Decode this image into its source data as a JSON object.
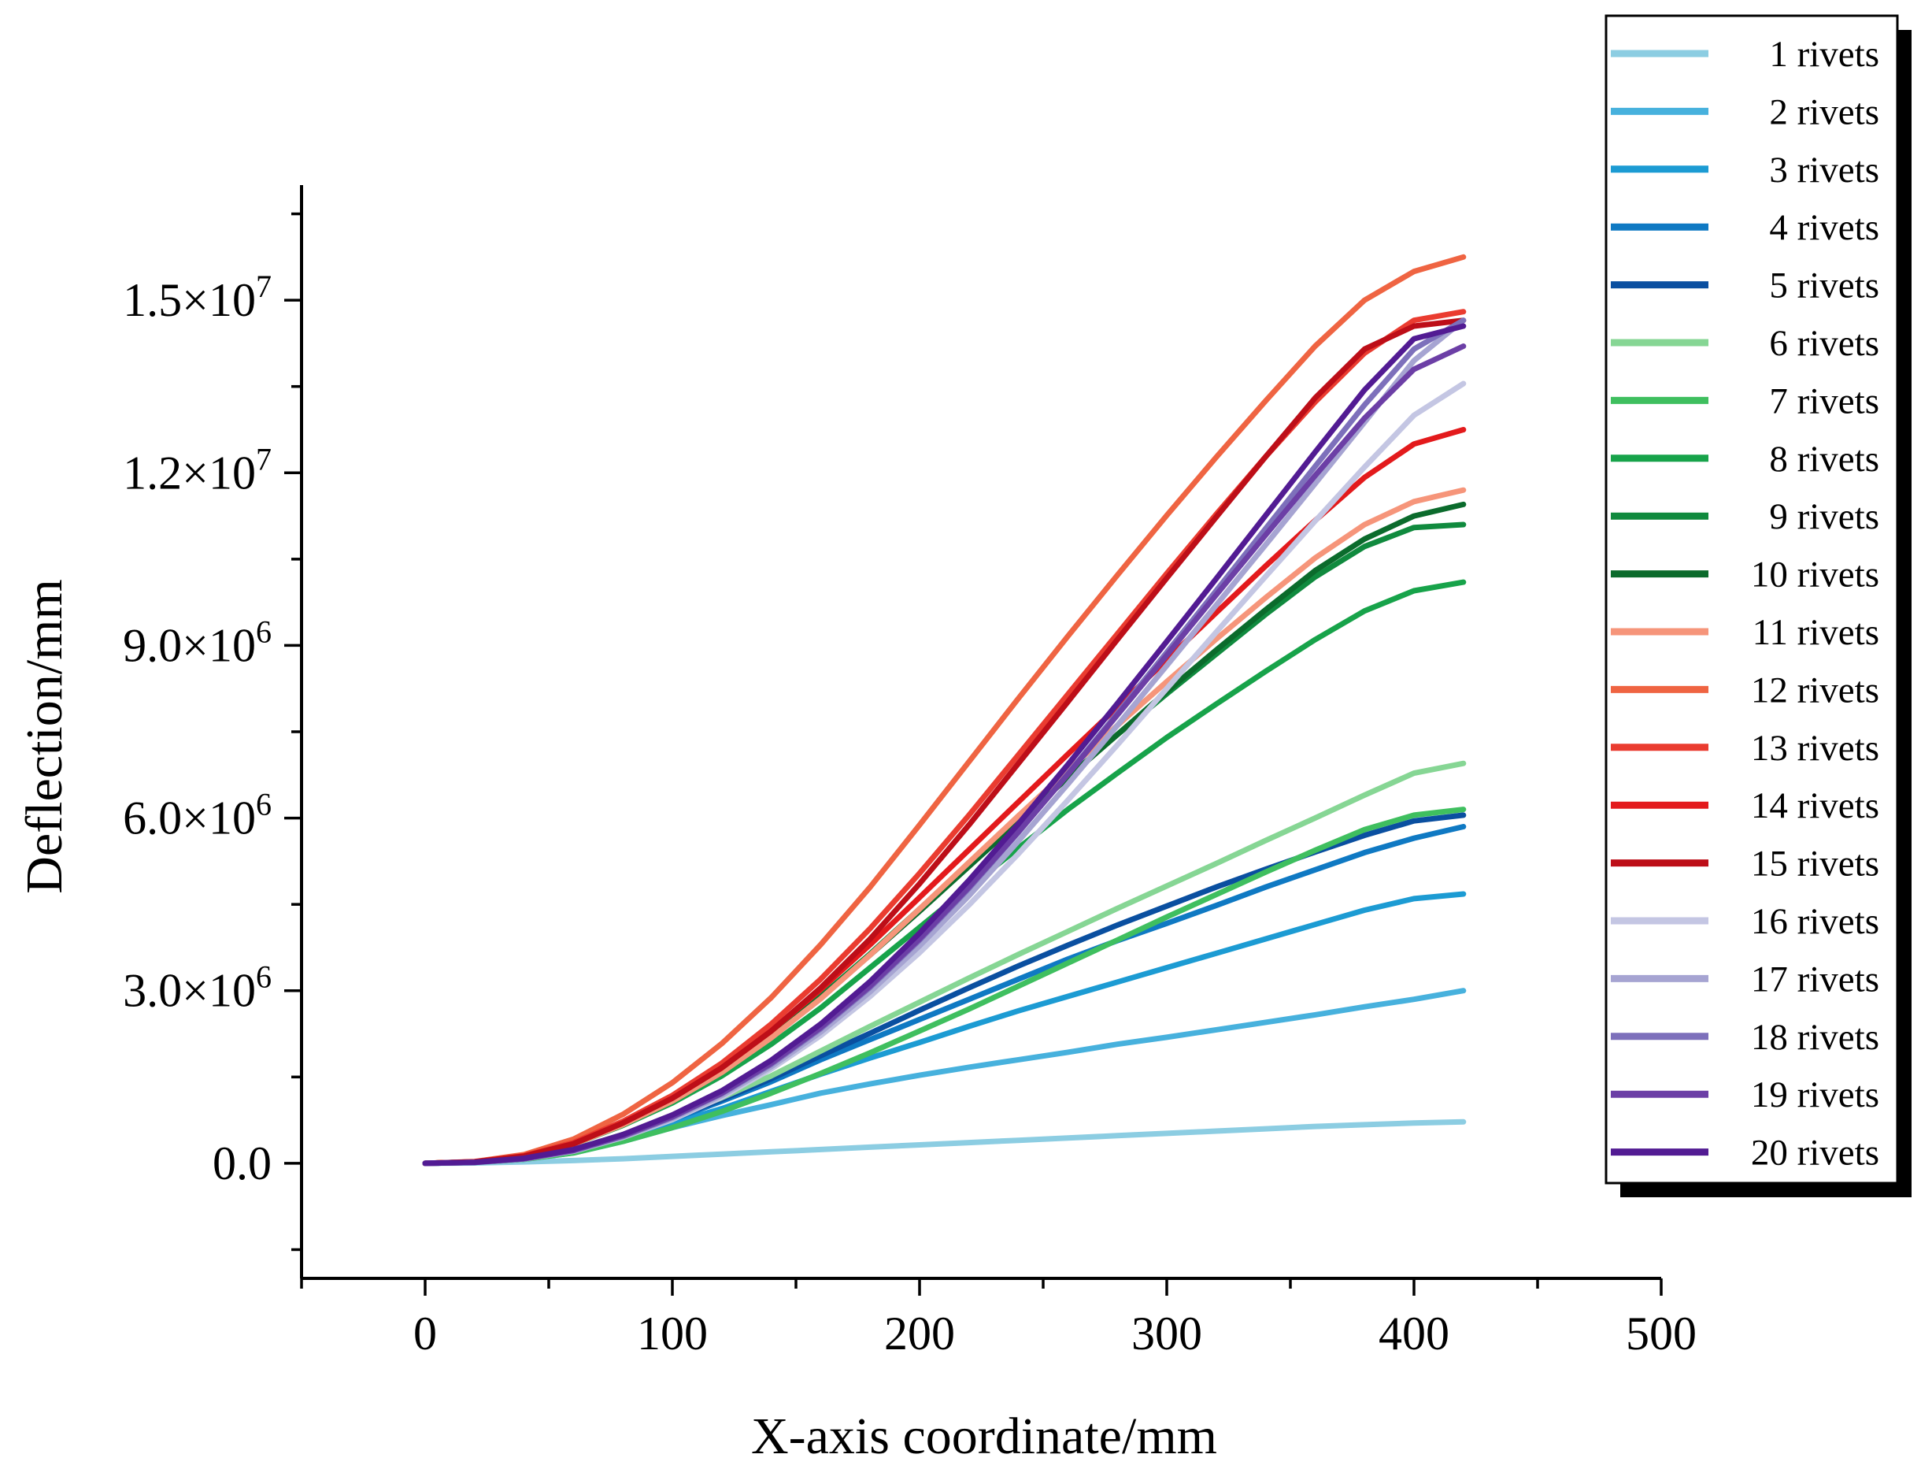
{
  "chart_data": {
    "type": "line",
    "xlabel": "X-axis coordinate/mm",
    "ylabel": "Deflection/mm",
    "xlim": [
      -50,
      500
    ],
    "ylim": [
      -2000000,
      17000000
    ],
    "x_ticks": [
      0,
      100,
      200,
      300,
      400,
      500
    ],
    "x_tick_labels": [
      "0",
      "100",
      "200",
      "300",
      "400",
      "500"
    ],
    "y_ticks": [
      0,
      3000000,
      6000000,
      9000000,
      12000000,
      15000000
    ],
    "y_tick_labels": [
      {
        "mantissa": "0.0",
        "exp": ""
      },
      {
        "mantissa": "3.0×10",
        "exp": "6"
      },
      {
        "mantissa": "6.0×10",
        "exp": "6"
      },
      {
        "mantissa": "9.0×10",
        "exp": "6"
      },
      {
        "mantissa": "1.2×10",
        "exp": "7"
      },
      {
        "mantissa": "1.5×10",
        "exp": "7"
      }
    ],
    "legend_position": "top-right outside",
    "x": [
      0,
      20,
      40,
      60,
      80,
      100,
      120,
      140,
      160,
      180,
      200,
      220,
      240,
      260,
      280,
      300,
      320,
      340,
      360,
      380,
      400,
      420
    ],
    "series": [
      {
        "name": "1 rivets",
        "color": "#8ccde2",
        "values": [
          0,
          6000,
          25000,
          48000,
          80000,
          120000,
          160000,
          200000,
          240000,
          280000,
          320000,
          360000,
          400000,
          440000,
          480000,
          520000,
          560000,
          600000,
          640000,
          670000,
          700000,
          720000
        ]
      },
      {
        "name": "2 rivets",
        "color": "#47b1dd",
        "values": [
          0,
          15000,
          70000,
          180000,
          380000,
          620000,
          830000,
          1020000,
          1220000,
          1380000,
          1530000,
          1670000,
          1800000,
          1930000,
          2070000,
          2190000,
          2320000,
          2450000,
          2580000,
          2720000,
          2850000,
          3000000
        ]
      },
      {
        "name": "3 rivets",
        "color": "#1c9bd3",
        "values": [
          0,
          18000,
          80000,
          220000,
          450000,
          700000,
          950000,
          1250000,
          1550000,
          1830000,
          2100000,
          2380000,
          2650000,
          2900000,
          3150000,
          3400000,
          3650000,
          3900000,
          4150000,
          4400000,
          4600000,
          4680000
        ]
      },
      {
        "name": "4 rivets",
        "color": "#0f79c3",
        "values": [
          0,
          18000,
          85000,
          230000,
          480000,
          760000,
          1080000,
          1420000,
          1800000,
          2150000,
          2500000,
          2850000,
          3200000,
          3550000,
          3870000,
          4170000,
          4480000,
          4800000,
          5100000,
          5400000,
          5650000,
          5850000
        ]
      },
      {
        "name": "5 rivets",
        "color": "#0a4fa0",
        "values": [
          0,
          18000,
          85000,
          235000,
          490000,
          780000,
          1110000,
          1470000,
          1870000,
          2260000,
          2660000,
          3050000,
          3430000,
          3790000,
          4140000,
          4470000,
          4800000,
          5110000,
          5410000,
          5700000,
          5950000,
          6050000
        ]
      },
      {
        "name": "6 rivets",
        "color": "#86d694",
        "values": [
          0,
          18000,
          85000,
          240000,
          500000,
          800000,
          1140000,
          1520000,
          1950000,
          2380000,
          2800000,
          3220000,
          3630000,
          4030000,
          4430000,
          4820000,
          5210000,
          5610000,
          6000000,
          6400000,
          6780000,
          6950000
        ]
      },
      {
        "name": "7 rivets",
        "color": "#3fbf5f",
        "values": [
          0,
          15000,
          70000,
          180000,
          380000,
          620000,
          900000,
          1220000,
          1560000,
          1920000,
          2300000,
          2680000,
          3080000,
          3480000,
          3880000,
          4280000,
          4670000,
          5060000,
          5440000,
          5800000,
          6050000,
          6150000
        ]
      },
      {
        "name": "8 rivets",
        "color": "#17a34a",
        "values": [
          0,
          25000,
          120000,
          330000,
          660000,
          1050000,
          1520000,
          2070000,
          2700000,
          3400000,
          4100000,
          4800000,
          5480000,
          6150000,
          6780000,
          7400000,
          7980000,
          8550000,
          9100000,
          9600000,
          9950000,
          10100000
        ]
      },
      {
        "name": "9 rivets",
        "color": "#108a3e",
        "values": [
          0,
          25000,
          125000,
          340000,
          700000,
          1120000,
          1630000,
          2230000,
          2900000,
          3640000,
          4420000,
          5200000,
          5960000,
          6710000,
          7450000,
          8160000,
          8850000,
          9540000,
          10190000,
          10720000,
          11050000,
          11100000
        ]
      },
      {
        "name": "10 rivets",
        "color": "#0b6b2c",
        "values": [
          0,
          25000,
          125000,
          340000,
          690000,
          1100000,
          1600000,
          2200000,
          2880000,
          3620000,
          4380000,
          5160000,
          5940000,
          6700000,
          7450000,
          8200000,
          8920000,
          9620000,
          10300000,
          10850000,
          11250000,
          11450000
        ]
      },
      {
        "name": "11 rivets",
        "color": "#f6957a",
        "values": [
          0,
          24000,
          120000,
          330000,
          670000,
          1080000,
          1580000,
          2180000,
          2860000,
          3620000,
          4420000,
          5230000,
          6040000,
          6830000,
          7610000,
          8370000,
          9110000,
          9830000,
          10520000,
          11100000,
          11500000,
          11700000
        ]
      },
      {
        "name": "12 rivets",
        "color": "#ef6442",
        "values": [
          0,
          30000,
          150000,
          420000,
          850000,
          1400000,
          2080000,
          2880000,
          3800000,
          4800000,
          5880000,
          6980000,
          8080000,
          9160000,
          10220000,
          11260000,
          12270000,
          13250000,
          14200000,
          15000000,
          15500000,
          15750000
        ]
      },
      {
        "name": "13 rivets",
        "color": "#ea3c30",
        "values": [
          0,
          26000,
          130000,
          360000,
          730000,
          1180000,
          1740000,
          2420000,
          3200000,
          4080000,
          5040000,
          6050000,
          7100000,
          8150000,
          9200000,
          10250000,
          11280000,
          12280000,
          13230000,
          14080000,
          14650000,
          14800000
        ]
      },
      {
        "name": "14 rivets",
        "color": "#e31a1c",
        "values": [
          0,
          26000,
          125000,
          340000,
          700000,
          1130000,
          1660000,
          2300000,
          3020000,
          3800000,
          4620000,
          5450000,
          6280000,
          7110000,
          7930000,
          8750000,
          9570000,
          10380000,
          11170000,
          11920000,
          12500000,
          12750000
        ]
      },
      {
        "name": "15 rivets",
        "color": "#bd0e18",
        "values": [
          0,
          25000,
          125000,
          340000,
          700000,
          1130000,
          1660000,
          2300000,
          3050000,
          3900000,
          4860000,
          5880000,
          6950000,
          8020000,
          9100000,
          10170000,
          11230000,
          12280000,
          13300000,
          14150000,
          14550000,
          14650000
        ]
      },
      {
        "name": "16 rivets",
        "color": "#c4c6e3",
        "values": [
          0,
          15000,
          75000,
          210000,
          450000,
          760000,
          1150000,
          1640000,
          2220000,
          2900000,
          3660000,
          4490000,
          5380000,
          6310000,
          7270000,
          8250000,
          9230000,
          10200000,
          11160000,
          12100000,
          13000000,
          13550000
        ]
      },
      {
        "name": "17 rivets",
        "color": "#a6a4d2",
        "values": [
          0,
          15000,
          75000,
          215000,
          460000,
          780000,
          1180000,
          1680000,
          2280000,
          2980000,
          3780000,
          4650000,
          5600000,
          6590000,
          7610000,
          8650000,
          9700000,
          10750000,
          11810000,
          12880000,
          13950000,
          14650000
        ]
      },
      {
        "name": "18 rivets",
        "color": "#7d70bb",
        "values": [
          0,
          15000,
          78000,
          220000,
          470000,
          800000,
          1210000,
          1720000,
          2340000,
          3060000,
          3880000,
          4780000,
          5750000,
          6770000,
          7820000,
          8880000,
          9950000,
          11030000,
          12110000,
          13180000,
          14150000,
          14650000
        ]
      },
      {
        "name": "19 rivets",
        "color": "#6c3fa6",
        "values": [
          0,
          16000,
          80000,
          225000,
          480000,
          810000,
          1220000,
          1740000,
          2360000,
          3080000,
          3900000,
          4800000,
          5760000,
          6760000,
          7790000,
          8830000,
          9880000,
          10920000,
          11950000,
          12950000,
          13800000,
          14200000
        ]
      },
      {
        "name": "20 rivets",
        "color": "#521b93",
        "values": [
          0,
          18000,
          88000,
          240000,
          500000,
          840000,
          1260000,
          1790000,
          2420000,
          3160000,
          4000000,
          4920000,
          5900000,
          6930000,
          7990000,
          9070000,
          10160000,
          11260000,
          12360000,
          13440000,
          14330000,
          14550000
        ]
      }
    ]
  }
}
